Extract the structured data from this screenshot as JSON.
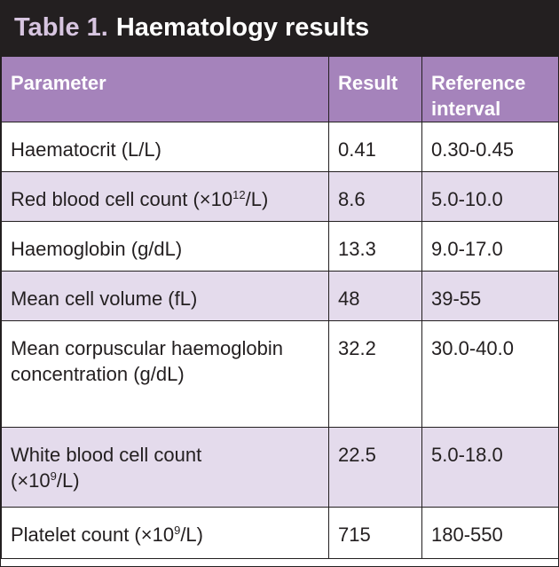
{
  "title": {
    "prefix": "Table 1.",
    "text": "Haematology results"
  },
  "colors": {
    "header_bg": "#a583bb",
    "title_bg": "#231f20",
    "stripe": "#e4dbec",
    "title_prefix": "#d7c5e0"
  },
  "headers": {
    "parameter": "Parameter",
    "result": "Result",
    "reference": "Reference interval"
  },
  "rows": [
    {
      "parameter": "Haematocrit (L/L)",
      "result": "0.41",
      "reference": "0.30-0.45"
    },
    {
      "parameter_pre": "Red blood cell count (×10",
      "parameter_sup": "12",
      "parameter_post": "/L)",
      "result": "8.6",
      "reference": "5.0-10.0"
    },
    {
      "parameter": "Haemoglobin (g/dL)",
      "result": "13.3",
      "reference": "9.0-17.0"
    },
    {
      "parameter": "Mean cell volume (fL)",
      "result": "48",
      "reference": "39-55"
    },
    {
      "parameter": "Mean corpuscular haemoglobin concentration (g/dL)",
      "result": "32.2",
      "reference": "30.0-40.0"
    },
    {
      "parameter_pre": "White blood cell count (×10",
      "parameter_sup": "9",
      "parameter_post": "/L)",
      "result": "22.5",
      "reference": "5.0-18.0"
    },
    {
      "parameter_pre": "Platelet count (×10",
      "parameter_sup": "9",
      "parameter_post": "/L)",
      "result": "715",
      "reference": "180-550"
    }
  ]
}
